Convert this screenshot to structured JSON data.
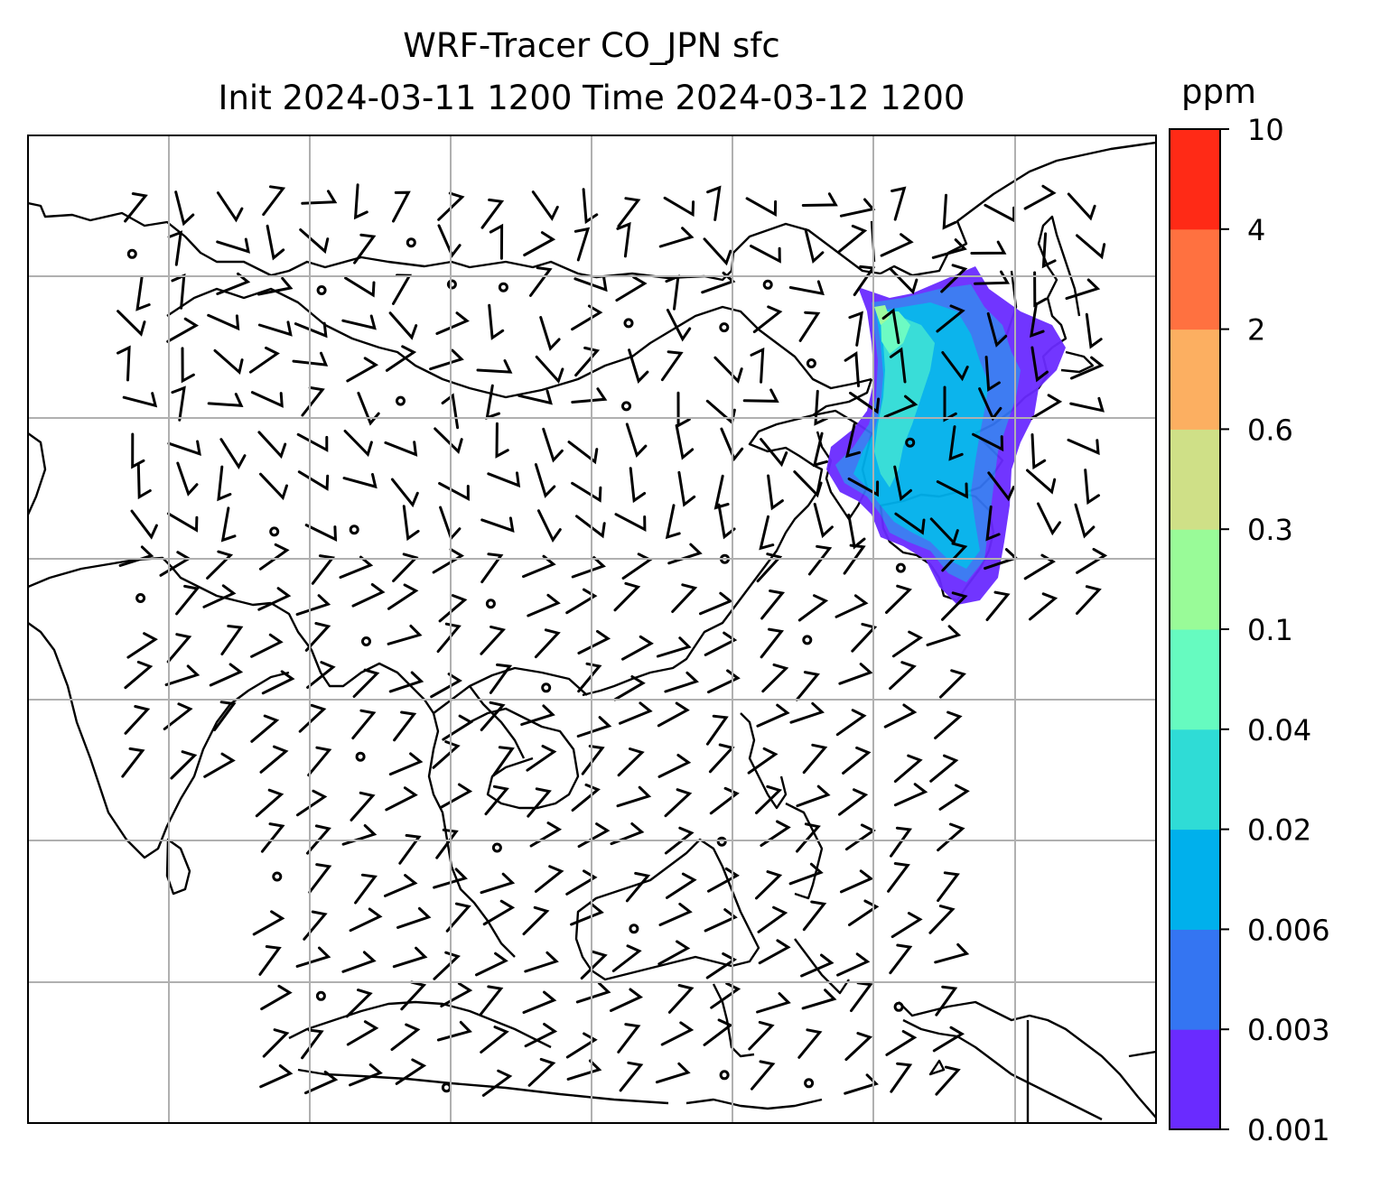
{
  "title": {
    "line1": "WRF-Tracer CO_JPN sfc",
    "line2": "Init 2024-03-11 1200 Time 2024-03-12 1200"
  },
  "colorbar": {
    "unit": "ppm",
    "levels": [
      "0.001",
      "0.003",
      "0.006",
      "0.02",
      "0.04",
      "0.1",
      "0.3",
      "0.6",
      "2",
      "4",
      "10"
    ],
    "colors": [
      "#6a2bff",
      "#3475f2",
      "#00b0ec",
      "#2fdcd6",
      "#66fbc0",
      "#99fb98",
      "#cfe087",
      "#fcaf61",
      "#ff7140",
      "#ff2a16"
    ]
  },
  "map": {
    "gridline_color": "#b0b0b0",
    "coastline_color": "#000000",
    "plume_colors": [
      "#6a2bff",
      "#3475f2",
      "#00b0ec",
      "#2fdcd6",
      "#66fbc0",
      "#99fb98"
    ],
    "wind_barbs": "black"
  }
}
